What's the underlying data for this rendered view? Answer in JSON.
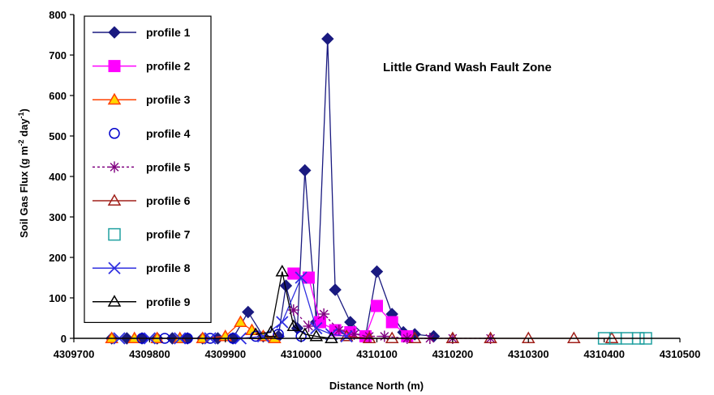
{
  "chart_data": {
    "type": "scatter",
    "title": "",
    "annotation": "Little Grand Wash Fault Zone",
    "xlabel": "Distance North (m)",
    "ylabel": "Soil Gas Flux (g m",
    "ylabel_sup1": "-2",
    "ylabel_mid": " day",
    "ylabel_sup2": "-1",
    "ylabel_end": ")",
    "xlim": [
      4309700,
      4310500
    ],
    "ylim": [
      0,
      800
    ],
    "x_ticks": [
      4309700,
      4309800,
      4309900,
      4310000,
      4310100,
      4310200,
      4310300,
      4310400,
      4310500
    ],
    "x_tick_labels": [
      "4309700",
      "4309800",
      "4309900",
      "4310000",
      "4310100",
      "4310200",
      "4310300",
      "4310400",
      "4310500"
    ],
    "y_ticks": [
      0,
      100,
      200,
      300,
      400,
      500,
      600,
      700,
      800
    ],
    "y_tick_labels": [
      "0",
      "100",
      "200",
      "300",
      "400",
      "500",
      "600",
      "700",
      "800"
    ],
    "grid": false,
    "legend_position": "left inside plot",
    "series": [
      {
        "name": "profile 1",
        "color": "#1a1a80",
        "marker": "diamond-filled",
        "line": "solid",
        "points": [
          [
            4309750,
            0
          ],
          [
            4309770,
            0
          ],
          [
            4309790,
            0
          ],
          [
            4309810,
            0
          ],
          [
            4309830,
            0
          ],
          [
            4309850,
            0
          ],
          [
            4309870,
            0
          ],
          [
            4309890,
            0
          ],
          [
            4309910,
            0
          ],
          [
            4309930,
            65
          ],
          [
            4309950,
            5
          ],
          [
            4309970,
            5
          ],
          [
            4309980,
            130
          ],
          [
            4309995,
            25
          ],
          [
            4310005,
            415
          ],
          [
            4310020,
            40
          ],
          [
            4310035,
            740
          ],
          [
            4310045,
            120
          ],
          [
            4310065,
            40
          ],
          [
            4310085,
            5
          ],
          [
            4310100,
            165
          ],
          [
            4310120,
            60
          ],
          [
            4310135,
            15
          ],
          [
            4310150,
            10
          ],
          [
            4310175,
            5
          ]
        ]
      },
      {
        "name": "profile 2",
        "color": "#ff00ff",
        "marker": "square-filled",
        "line": "solid",
        "points": [
          [
            4309990,
            160
          ],
          [
            4310010,
            150
          ],
          [
            4310025,
            40
          ],
          [
            4310045,
            20
          ],
          [
            4310065,
            15
          ],
          [
            4310085,
            5
          ],
          [
            4310100,
            80
          ],
          [
            4310120,
            40
          ],
          [
            4310140,
            5
          ]
        ]
      },
      {
        "name": "profile 3",
        "color": "#ff4000",
        "marker": "triangle-yellow",
        "line": "solid",
        "points": [
          [
            4309750,
            0
          ],
          [
            4309780,
            0
          ],
          [
            4309810,
            0
          ],
          [
            4309840,
            0
          ],
          [
            4309870,
            0
          ],
          [
            4309900,
            5
          ],
          [
            4309920,
            40
          ],
          [
            4309935,
            20
          ],
          [
            4309950,
            5
          ],
          [
            4309965,
            0
          ]
        ]
      },
      {
        "name": "profile 4",
        "color": "#0000cc",
        "marker": "circle-open",
        "line": "none",
        "points": [
          [
            4309790,
            0
          ],
          [
            4309820,
            0
          ],
          [
            4309850,
            0
          ],
          [
            4309880,
            0
          ],
          [
            4309910,
            0
          ],
          [
            4309940,
            5
          ],
          [
            4309970,
            10
          ],
          [
            4310000,
            5
          ]
        ]
      },
      {
        "name": "profile 5",
        "color": "#800080",
        "marker": "star",
        "line": "dashed",
        "points": [
          [
            4309990,
            70
          ],
          [
            4310010,
            30
          ],
          [
            4310030,
            60
          ],
          [
            4310050,
            20
          ],
          [
            4310070,
            10
          ],
          [
            4310090,
            5
          ],
          [
            4310110,
            5
          ],
          [
            4310140,
            0
          ],
          [
            4310170,
            0
          ],
          [
            4310200,
            0
          ],
          [
            4310250,
            0
          ]
        ]
      },
      {
        "name": "profile 6",
        "color": "#a0201a",
        "marker": "triangle-open",
        "line": "solid",
        "points": [
          [
            4310060,
            5
          ],
          [
            4310090,
            0
          ],
          [
            4310120,
            0
          ],
          [
            4310150,
            0
          ],
          [
            4310200,
            0
          ],
          [
            4310250,
            0
          ],
          [
            4310300,
            0
          ],
          [
            4310360,
            0
          ],
          [
            4310410,
            0
          ]
        ]
      },
      {
        "name": "profile 7",
        "color": "#20a0a0",
        "marker": "square-open",
        "line": "none",
        "points": [
          [
            4310400,
            0
          ],
          [
            4310415,
            0
          ],
          [
            4310430,
            0
          ],
          [
            4310445,
            0
          ],
          [
            4310455,
            0
          ]
        ]
      },
      {
        "name": "profile 8",
        "color": "#3030e0",
        "marker": "x",
        "line": "solid",
        "points": [
          [
            4309760,
            0
          ],
          [
            4309800,
            0
          ],
          [
            4309840,
            0
          ],
          [
            4309880,
            0
          ],
          [
            4309920,
            0
          ],
          [
            4309950,
            5
          ],
          [
            4309975,
            40
          ],
          [
            4310000,
            150
          ],
          [
            4310020,
            25
          ],
          [
            4310040,
            10
          ],
          [
            4310060,
            5
          ]
        ]
      },
      {
        "name": "profile 9",
        "color": "#000000",
        "marker": "triangle-open",
        "line": "solid",
        "points": [
          [
            4309940,
            10
          ],
          [
            4309960,
            15
          ],
          [
            4309975,
            165
          ],
          [
            4309990,
            30
          ],
          [
            4310005,
            10
          ],
          [
            4310020,
            5
          ],
          [
            4310040,
            0
          ]
        ]
      }
    ]
  }
}
